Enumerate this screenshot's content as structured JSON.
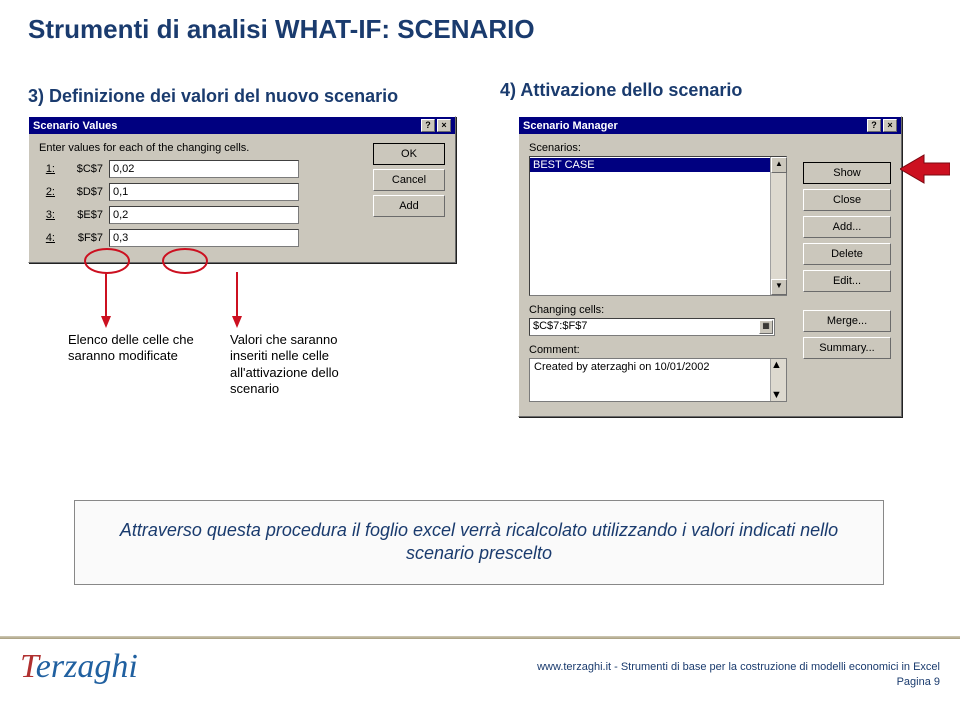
{
  "page_title": "Strumenti di analisi WHAT-IF: SCENARIO",
  "subtitle_left": "3) Definizione dei valori del nuovo scenario",
  "subtitle_right": "4) Attivazione dello scenario",
  "sv_dialog": {
    "title": "Scenario Values",
    "instruction": "Enter values for each of the changing cells.",
    "rows": [
      {
        "idx": "1:",
        "ref": "$C$7",
        "val": "0,02"
      },
      {
        "idx": "2:",
        "ref": "$D$7",
        "val": "0,1"
      },
      {
        "idx": "3:",
        "ref": "$E$7",
        "val": "0,2"
      },
      {
        "idx": "4:",
        "ref": "$F$7",
        "val": "0,3"
      }
    ],
    "buttons": {
      "ok": "OK",
      "cancel": "Cancel",
      "add": "Add"
    }
  },
  "sm_dialog": {
    "title": "Scenario Manager",
    "scenarios_label": "Scenarios:",
    "selected": "BEST CASE",
    "changing_label": "Changing cells:",
    "changing_value": "$C$7:$F$7",
    "comment_label": "Comment:",
    "comment_value": "Created by aterzaghi on 10/01/2002",
    "buttons": {
      "show": "Show",
      "close": "Close",
      "add": "Add...",
      "delete": "Delete",
      "edit": "Edit...",
      "merge": "Merge...",
      "summary": "Summary..."
    }
  },
  "annot_left": "Elenco delle celle che\nsaranno modificate",
  "annot_right": "Valori che saranno\ninseriti nelle celle\nall'attivazione dello\nscenario",
  "conclusion": "Attraverso questa procedura il foglio excel verrà ricalcolato utilizzando i valori indicati nello scenario prescelto",
  "footer": {
    "logo": "Terzaghi",
    "line1": "www.terzaghi.it - Strumenti di base per la costruzione di modelli economici in Excel",
    "line2": "Pagina 9"
  },
  "colors": {
    "title": "#1a3b6e",
    "dialog_bg": "#cbc7bc",
    "titlebar_bg": "#000080",
    "arrow_red": "#cc1020"
  }
}
